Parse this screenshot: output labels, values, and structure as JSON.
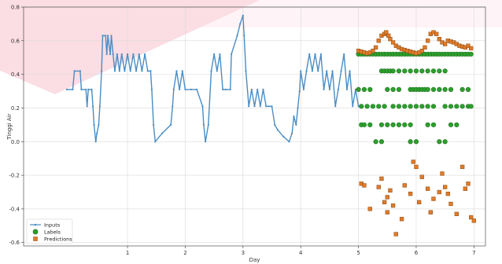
{
  "chart_data": {
    "type": "scatter",
    "title": "",
    "xlabel": "Day",
    "ylabel": "Tinggi Air",
    "xlim": [
      -0.8,
      7.2
    ],
    "ylim": [
      -0.62,
      0.8
    ],
    "xticks": [
      1,
      2,
      3,
      4,
      5,
      6,
      7
    ],
    "yticks": [
      -0.6,
      -0.4,
      -0.2,
      0.0,
      0.2,
      0.4,
      0.6,
      0.8
    ],
    "ytick_labels": [
      "-0.6",
      "-0.4",
      "-0.2",
      "0.0",
      "0.2",
      "0.4",
      "0.6",
      "0.8"
    ],
    "grid": true,
    "legend_position": "lower-left",
    "colors": {
      "inputs": "#4a8dc4",
      "labels": "#2ca02c",
      "predictions": "#ff7f0e",
      "grid": "#d9d9d9",
      "background_artifact": "#fbdde4"
    },
    "series": [
      {
        "name": "Inputs",
        "style": "line-with-dot-markers",
        "points": [
          [
            -0.05,
            0.31
          ],
          [
            0.05,
            0.31
          ],
          [
            0.08,
            0.42
          ],
          [
            0.18,
            0.42
          ],
          [
            0.2,
            0.31
          ],
          [
            0.28,
            0.31
          ],
          [
            0.3,
            0.21
          ],
          [
            0.32,
            0.31
          ],
          [
            0.38,
            0.31
          ],
          [
            0.4,
            0.21
          ],
          [
            0.42,
            0.1
          ],
          [
            0.45,
            0.0
          ],
          [
            0.47,
            0.05
          ],
          [
            0.5,
            0.1
          ],
          [
            0.52,
            0.21
          ],
          [
            0.55,
            0.42
          ],
          [
            0.57,
            0.63
          ],
          [
            0.62,
            0.63
          ],
          [
            0.64,
            0.52
          ],
          [
            0.66,
            0.63
          ],
          [
            0.7,
            0.52
          ],
          [
            0.72,
            0.63
          ],
          [
            0.75,
            0.52
          ],
          [
            0.78,
            0.42
          ],
          [
            0.82,
            0.52
          ],
          [
            0.86,
            0.42
          ],
          [
            0.9,
            0.52
          ],
          [
            0.95,
            0.42
          ],
          [
            1.0,
            0.52
          ],
          [
            1.05,
            0.42
          ],
          [
            1.1,
            0.52
          ],
          [
            1.15,
            0.42
          ],
          [
            1.2,
            0.52
          ],
          [
            1.25,
            0.42
          ],
          [
            1.3,
            0.52
          ],
          [
            1.35,
            0.42
          ],
          [
            1.4,
            0.42
          ],
          [
            1.42,
            0.31
          ],
          [
            1.45,
            0.1
          ],
          [
            1.48,
            0.0
          ],
          [
            1.6,
            0.05
          ],
          [
            1.75,
            0.1
          ],
          [
            1.78,
            0.21
          ],
          [
            1.8,
            0.31
          ],
          [
            1.85,
            0.42
          ],
          [
            1.9,
            0.31
          ],
          [
            1.95,
            0.42
          ],
          [
            2.0,
            0.31
          ],
          [
            2.1,
            0.31
          ],
          [
            2.2,
            0.31
          ],
          [
            2.3,
            0.21
          ],
          [
            2.32,
            0.1
          ],
          [
            2.35,
            0.0
          ],
          [
            2.4,
            0.1
          ],
          [
            2.45,
            0.42
          ],
          [
            2.5,
            0.52
          ],
          [
            2.55,
            0.42
          ],
          [
            2.6,
            0.52
          ],
          [
            2.65,
            0.31
          ],
          [
            2.7,
            0.31
          ],
          [
            2.78,
            0.31
          ],
          [
            2.8,
            0.52
          ],
          [
            2.9,
            0.63
          ],
          [
            2.95,
            0.7
          ],
          [
            3.0,
            0.75
          ],
          [
            3.02,
            0.63
          ],
          [
            3.05,
            0.42
          ],
          [
            3.1,
            0.21
          ],
          [
            3.15,
            0.31
          ],
          [
            3.2,
            0.21
          ],
          [
            3.25,
            0.31
          ],
          [
            3.3,
            0.21
          ],
          [
            3.35,
            0.31
          ],
          [
            3.4,
            0.21
          ],
          [
            3.45,
            0.21
          ],
          [
            3.5,
            0.21
          ],
          [
            3.55,
            0.1
          ],
          [
            3.6,
            0.07
          ],
          [
            3.7,
            0.03
          ],
          [
            3.8,
            0.0
          ],
          [
            3.85,
            0.05
          ],
          [
            3.88,
            0.15
          ],
          [
            3.92,
            0.1
          ],
          [
            3.95,
            0.2
          ],
          [
            3.98,
            0.3
          ],
          [
            4.0,
            0.42
          ],
          [
            4.05,
            0.31
          ],
          [
            4.1,
            0.42
          ],
          [
            4.15,
            0.52
          ],
          [
            4.2,
            0.42
          ],
          [
            4.25,
            0.52
          ],
          [
            4.3,
            0.42
          ],
          [
            4.35,
            0.52
          ],
          [
            4.4,
            0.31
          ],
          [
            4.45,
            0.42
          ],
          [
            4.5,
            0.31
          ],
          [
            4.55,
            0.42
          ],
          [
            4.6,
            0.21
          ],
          [
            4.65,
            0.31
          ],
          [
            4.7,
            0.42
          ],
          [
            4.75,
            0.52
          ],
          [
            4.8,
            0.31
          ],
          [
            4.85,
            0.42
          ],
          [
            4.9,
            0.21
          ],
          [
            4.95,
            0.31
          ],
          [
            5.0,
            0.21
          ]
        ]
      },
      {
        "name": "Labels",
        "style": "green-circles",
        "points": [
          [
            5.0,
            0.52
          ],
          [
            5.05,
            0.52
          ],
          [
            5.1,
            0.52
          ],
          [
            5.15,
            0.52
          ],
          [
            5.2,
            0.52
          ],
          [
            5.25,
            0.52
          ],
          [
            5.3,
            0.52
          ],
          [
            5.35,
            0.52
          ],
          [
            5.4,
            0.52
          ],
          [
            5.45,
            0.52
          ],
          [
            5.5,
            0.52
          ],
          [
            5.55,
            0.52
          ],
          [
            5.6,
            0.52
          ],
          [
            5.65,
            0.52
          ],
          [
            5.7,
            0.52
          ],
          [
            5.75,
            0.52
          ],
          [
            5.8,
            0.52
          ],
          [
            5.85,
            0.52
          ],
          [
            5.9,
            0.52
          ],
          [
            5.95,
            0.52
          ],
          [
            6.0,
            0.52
          ],
          [
            6.05,
            0.52
          ],
          [
            6.1,
            0.52
          ],
          [
            6.15,
            0.52
          ],
          [
            6.2,
            0.52
          ],
          [
            6.25,
            0.52
          ],
          [
            6.3,
            0.52
          ],
          [
            6.35,
            0.52
          ],
          [
            6.4,
            0.52
          ],
          [
            6.45,
            0.52
          ],
          [
            6.5,
            0.52
          ],
          [
            6.55,
            0.52
          ],
          [
            6.6,
            0.52
          ],
          [
            6.65,
            0.52
          ],
          [
            6.7,
            0.52
          ],
          [
            6.75,
            0.52
          ],
          [
            6.8,
            0.52
          ],
          [
            6.85,
            0.52
          ],
          [
            6.9,
            0.52
          ],
          [
            6.95,
            0.52
          ],
          [
            5.4,
            0.42
          ],
          [
            5.45,
            0.42
          ],
          [
            5.5,
            0.42
          ],
          [
            5.55,
            0.42
          ],
          [
            5.6,
            0.42
          ],
          [
            5.7,
            0.42
          ],
          [
            5.8,
            0.42
          ],
          [
            5.9,
            0.42
          ],
          [
            6.0,
            0.42
          ],
          [
            6.1,
            0.42
          ],
          [
            6.2,
            0.42
          ],
          [
            6.3,
            0.42
          ],
          [
            6.4,
            0.42
          ],
          [
            6.5,
            0.42
          ],
          [
            5.0,
            0.31
          ],
          [
            5.1,
            0.31
          ],
          [
            5.2,
            0.31
          ],
          [
            5.5,
            0.31
          ],
          [
            5.6,
            0.31
          ],
          [
            5.7,
            0.31
          ],
          [
            5.9,
            0.31
          ],
          [
            5.95,
            0.31
          ],
          [
            6.0,
            0.31
          ],
          [
            6.05,
            0.31
          ],
          [
            6.1,
            0.31
          ],
          [
            6.15,
            0.31
          ],
          [
            6.2,
            0.31
          ],
          [
            6.3,
            0.31
          ],
          [
            6.4,
            0.31
          ],
          [
            6.5,
            0.31
          ],
          [
            6.6,
            0.31
          ],
          [
            6.8,
            0.31
          ],
          [
            6.9,
            0.31
          ],
          [
            5.05,
            0.21
          ],
          [
            5.15,
            0.21
          ],
          [
            5.25,
            0.21
          ],
          [
            5.35,
            0.21
          ],
          [
            5.45,
            0.21
          ],
          [
            5.6,
            0.21
          ],
          [
            5.7,
            0.21
          ],
          [
            5.8,
            0.21
          ],
          [
            5.9,
            0.21
          ],
          [
            6.0,
            0.21
          ],
          [
            6.1,
            0.21
          ],
          [
            6.2,
            0.21
          ],
          [
            6.3,
            0.21
          ],
          [
            6.5,
            0.21
          ],
          [
            6.6,
            0.21
          ],
          [
            6.7,
            0.21
          ],
          [
            6.8,
            0.21
          ],
          [
            6.9,
            0.21
          ],
          [
            6.95,
            0.21
          ],
          [
            5.05,
            0.1
          ],
          [
            5.1,
            0.1
          ],
          [
            5.2,
            0.1
          ],
          [
            5.4,
            0.1
          ],
          [
            5.5,
            0.1
          ],
          [
            5.6,
            0.1
          ],
          [
            5.7,
            0.1
          ],
          [
            5.8,
            0.1
          ],
          [
            5.9,
            0.1
          ],
          [
            6.2,
            0.1
          ],
          [
            6.3,
            0.1
          ],
          [
            6.6,
            0.1
          ],
          [
            6.7,
            0.1
          ],
          [
            5.3,
            0.0
          ],
          [
            5.4,
            0.0
          ],
          [
            5.9,
            0.0
          ],
          [
            6.0,
            0.0
          ],
          [
            6.4,
            0.0
          ],
          [
            6.5,
            0.0
          ]
        ]
      },
      {
        "name": "Predictions",
        "style": "orange-squares",
        "points": [
          [
            5.0,
            0.54
          ],
          [
            5.05,
            0.535
          ],
          [
            5.1,
            0.53
          ],
          [
            5.15,
            0.525
          ],
          [
            5.2,
            0.53
          ],
          [
            5.25,
            0.54
          ],
          [
            5.3,
            0.56
          ],
          [
            5.35,
            0.6
          ],
          [
            5.4,
            0.63
          ],
          [
            5.45,
            0.64
          ],
          [
            5.48,
            0.65
          ],
          [
            5.52,
            0.63
          ],
          [
            5.55,
            0.61
          ],
          [
            5.6,
            0.59
          ],
          [
            5.65,
            0.57
          ],
          [
            5.7,
            0.56
          ],
          [
            5.75,
            0.55
          ],
          [
            5.8,
            0.545
          ],
          [
            5.85,
            0.54
          ],
          [
            5.9,
            0.535
          ],
          [
            5.95,
            0.53
          ],
          [
            6.0,
            0.525
          ],
          [
            6.05,
            0.53
          ],
          [
            6.1,
            0.54
          ],
          [
            6.15,
            0.56
          ],
          [
            6.2,
            0.6
          ],
          [
            6.25,
            0.64
          ],
          [
            6.3,
            0.65
          ],
          [
            6.35,
            0.64
          ],
          [
            6.4,
            0.61
          ],
          [
            6.45,
            0.59
          ],
          [
            6.5,
            0.58
          ],
          [
            6.55,
            0.6
          ],
          [
            6.6,
            0.595
          ],
          [
            6.65,
            0.59
          ],
          [
            6.7,
            0.58
          ],
          [
            6.75,
            0.57
          ],
          [
            6.8,
            0.565
          ],
          [
            6.85,
            0.56
          ],
          [
            6.9,
            0.57
          ],
          [
            6.95,
            0.555
          ],
          [
            5.05,
            -0.25
          ],
          [
            5.1,
            -0.26
          ],
          [
            5.35,
            -0.27
          ],
          [
            5.4,
            -0.22
          ],
          [
            5.45,
            -0.36
          ],
          [
            5.5,
            -0.33
          ],
          [
            5.55,
            -0.29
          ],
          [
            5.6,
            -0.38
          ],
          [
            5.65,
            -0.55
          ],
          [
            5.75,
            -0.46
          ],
          [
            5.8,
            -0.26
          ],
          [
            5.9,
            -0.31
          ],
          [
            5.95,
            -0.12
          ],
          [
            6.0,
            -0.15
          ],
          [
            6.1,
            -0.21
          ],
          [
            6.2,
            -0.28
          ],
          [
            6.3,
            -0.34
          ],
          [
            6.4,
            -0.3
          ],
          [
            6.45,
            -0.19
          ],
          [
            6.5,
            -0.27
          ],
          [
            6.55,
            -0.31
          ],
          [
            6.6,
            -0.37
          ],
          [
            6.7,
            -0.43
          ],
          [
            6.8,
            -0.15
          ],
          [
            6.85,
            -0.28
          ],
          [
            6.9,
            -0.25
          ],
          [
            6.95,
            -0.45
          ],
          [
            7.0,
            -0.47
          ],
          [
            5.2,
            -0.4
          ],
          [
            5.5,
            -0.42
          ],
          [
            6.05,
            -0.36
          ],
          [
            6.25,
            -0.42
          ]
        ]
      }
    ]
  }
}
